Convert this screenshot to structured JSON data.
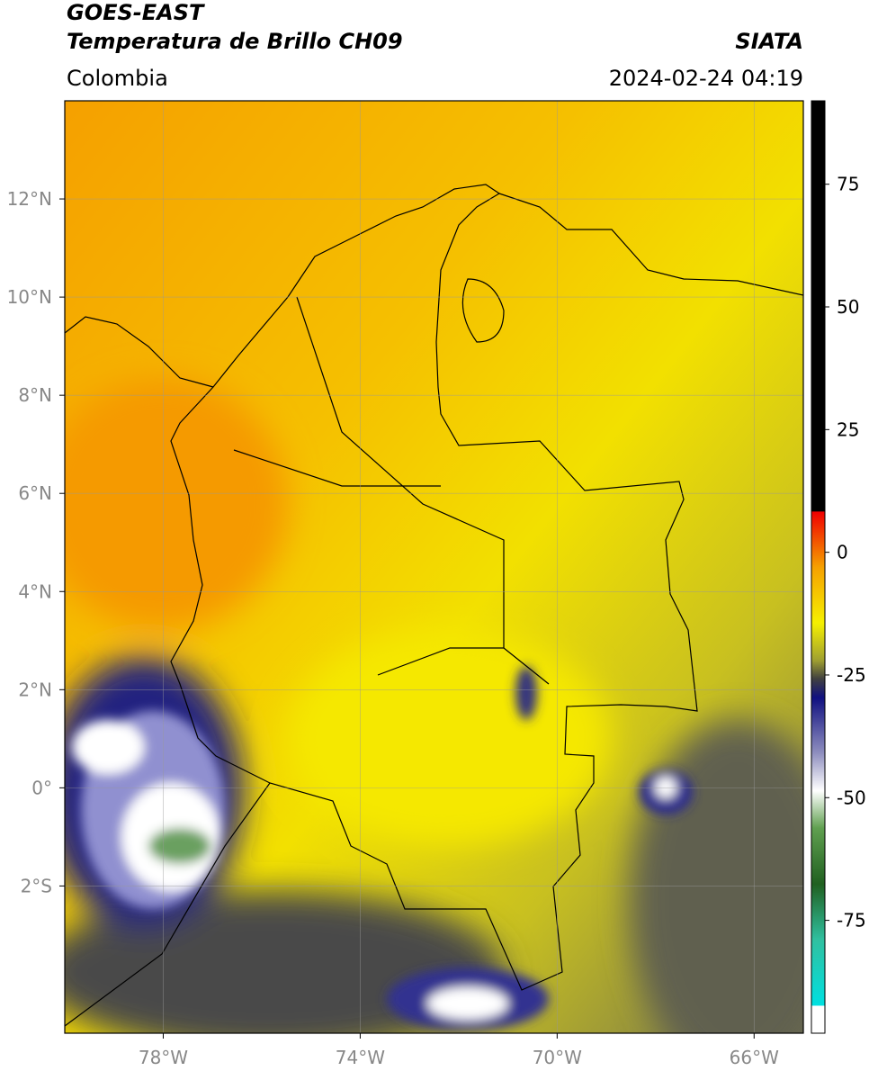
{
  "header": {
    "title": "GOES-EAST",
    "subtitle": "Temperatura de Brillo CH09",
    "source": "SIATA",
    "region": "Colombia",
    "datetime": "2024-02-24 04:19"
  },
  "map": {
    "lonlim": [
      -80,
      -65
    ],
    "latlim": [
      -5,
      14
    ],
    "grid": true,
    "lonticks": [
      {
        "value": -78,
        "label": "78°W"
      },
      {
        "value": -74,
        "label": "74°W"
      },
      {
        "value": -70,
        "label": "70°W"
      },
      {
        "value": -66,
        "label": "66°W"
      }
    ],
    "latticks": [
      {
        "value": 12,
        "label": "12°N"
      },
      {
        "value": 10,
        "label": "10°N"
      },
      {
        "value": 8,
        "label": "8°N"
      },
      {
        "value": 6,
        "label": "6°N"
      },
      {
        "value": 4,
        "label": "4°N"
      },
      {
        "value": 2,
        "label": "2°N"
      },
      {
        "value": 0,
        "label": "0°"
      },
      {
        "value": -2,
        "label": "2°S"
      }
    ]
  },
  "colorbar": {
    "lim": [
      -98,
      92
    ],
    "ticks": [
      75,
      50,
      25,
      0,
      -25,
      -50,
      -75
    ]
  }
}
